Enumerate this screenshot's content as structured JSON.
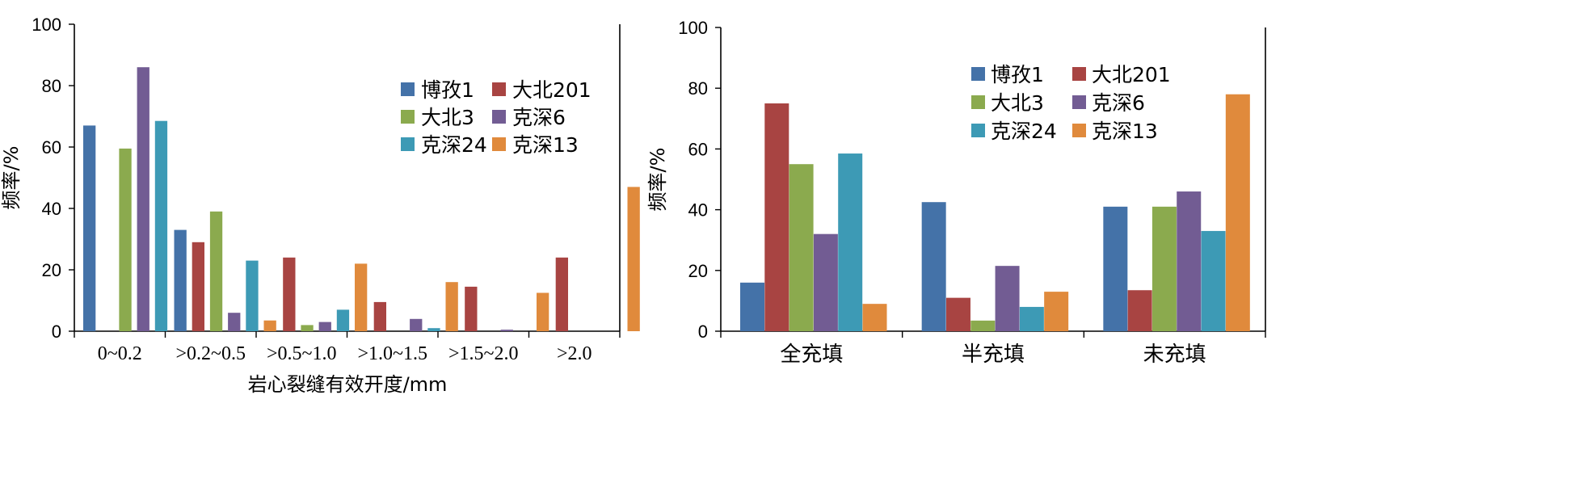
{
  "chart_data": [
    {
      "type": "bar",
      "title": "",
      "xlabel": "岩心裂缝有效开度/mm",
      "ylabel": "频率/%",
      "ylim": [
        0,
        100
      ],
      "yticks": [
        0,
        20,
        40,
        60,
        80,
        100
      ],
      "legend_position": "top-right",
      "categories": [
        "0~0.2",
        ">0.2~0.5",
        ">0.5~1.0",
        ">1.0~1.5",
        ">1.5~2.0",
        ">2.0"
      ],
      "series": [
        {
          "name": "博孜1",
          "color": "#4472A8",
          "values": [
            67,
            33,
            0,
            0,
            0,
            0
          ]
        },
        {
          "name": "大北201",
          "color": "#A84442",
          "values": [
            0,
            29,
            24,
            9.5,
            14.5,
            24
          ]
        },
        {
          "name": "大北3",
          "color": "#8BAA4E",
          "values": [
            59.5,
            39,
            2,
            0,
            0,
            0
          ]
        },
        {
          "name": "克深6",
          "color": "#725C93",
          "values": [
            86,
            6,
            3,
            4,
            0.5,
            0
          ]
        },
        {
          "name": "克深24",
          "color": "#3D9AB5",
          "values": [
            68.5,
            23,
            7,
            1,
            0,
            0
          ]
        },
        {
          "name": "克深13",
          "color": "#E08A3C",
          "values": [
            0,
            3.5,
            22,
            16,
            12.5,
            47
          ]
        }
      ]
    },
    {
      "type": "bar",
      "title": "",
      "xlabel": "",
      "ylabel": "频率/%",
      "ylim": [
        0,
        100
      ],
      "yticks": [
        0,
        20,
        40,
        60,
        80,
        100
      ],
      "legend_position": "top-right",
      "categories": [
        "全充填",
        "半充填",
        "未充填"
      ],
      "series": [
        {
          "name": "博孜1",
          "color": "#4472A8",
          "values": [
            16,
            42.5,
            41
          ]
        },
        {
          "name": "大北201",
          "color": "#A84442",
          "values": [
            75,
            11,
            13.5
          ]
        },
        {
          "name": "大北3",
          "color": "#8BAA4E",
          "values": [
            55,
            3.5,
            41
          ]
        },
        {
          "name": "克深6",
          "color": "#725C93",
          "values": [
            32,
            21.5,
            46
          ]
        },
        {
          "name": "克深24",
          "color": "#3D9AB5",
          "values": [
            58.5,
            8,
            33
          ]
        },
        {
          "name": "克深13",
          "color": "#E08A3C",
          "values": [
            9,
            13,
            78
          ]
        }
      ]
    }
  ]
}
